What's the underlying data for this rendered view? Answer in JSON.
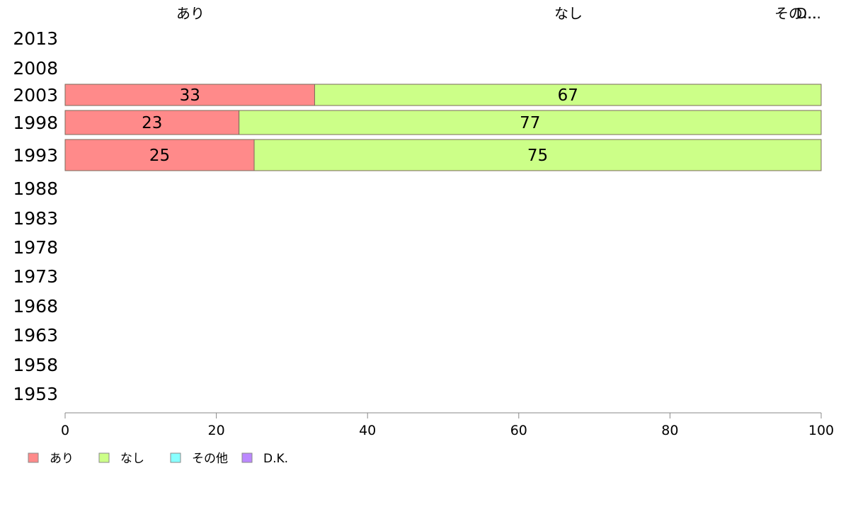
{
  "chart_data": {
    "type": "bar",
    "orientation": "horizontal",
    "stacked": true,
    "categories": [
      "2013",
      "2008",
      "2003",
      "1998",
      "1993",
      "1988",
      "1983",
      "1978",
      "1973",
      "1968",
      "1963",
      "1958",
      "1953"
    ],
    "series": [
      {
        "name": "あり",
        "color": "#ff8a8a",
        "values": [
          null,
          null,
          33,
          23,
          25,
          null,
          null,
          null,
          null,
          null,
          null,
          null,
          null
        ]
      },
      {
        "name": "なし",
        "color": "#ccff88",
        "values": [
          null,
          null,
          67,
          77,
          75,
          null,
          null,
          null,
          null,
          null,
          null,
          null,
          null
        ]
      },
      {
        "name": "その他",
        "color": "#88ffff",
        "values": [
          null,
          null,
          0,
          0,
          0,
          null,
          null,
          null,
          null,
          null,
          null,
          null,
          null
        ]
      },
      {
        "name": "D.K.",
        "color": "#bb88ff",
        "values": [
          null,
          null,
          0,
          0,
          0,
          null,
          null,
          null,
          null,
          null,
          null,
          null,
          null
        ]
      }
    ],
    "top_labels": [
      "あり",
      "なし",
      "その…",
      "D…"
    ],
    "xlim": [
      0,
      100
    ],
    "xticks": [
      0,
      20,
      40,
      60,
      80,
      100
    ],
    "grid": false,
    "legend": {
      "position": "bottom-left"
    }
  }
}
